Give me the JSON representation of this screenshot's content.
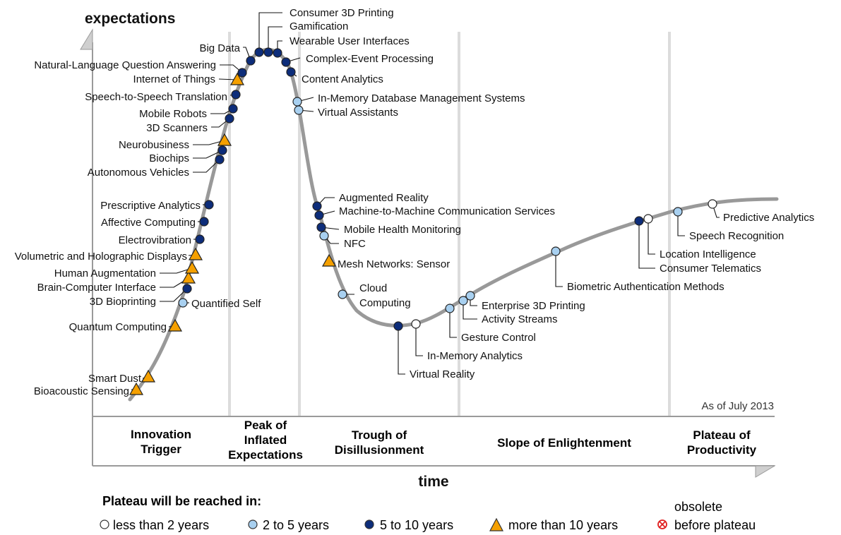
{
  "chart_data": {
    "type": "scatter",
    "y_axis_title": "expectations",
    "x_axis_title": "time",
    "as_of": "As of July 2013",
    "phases": [
      {
        "lines": [
          "Innovation",
          "Trigger"
        ]
      },
      {
        "lines": [
          "Peak of",
          "Inflated",
          "Expectations"
        ]
      },
      {
        "lines": [
          "Trough of",
          "Disillusionment"
        ]
      },
      {
        "lines": [
          "Slope of Enlightenment"
        ]
      },
      {
        "lines": [
          "Plateau of",
          "Productivity"
        ]
      }
    ],
    "legend": {
      "title": "Plateau will be reached in:",
      "items": [
        {
          "category": "lt2",
          "label": "less than 2 years"
        },
        {
          "category": "2to5",
          "label": "2 to 5 years"
        },
        {
          "category": "5to10",
          "label": "5 to 10 years"
        },
        {
          "category": "gt10",
          "label": "more than 10 years"
        },
        {
          "category": "obsolete",
          "label_line1": "obsolete",
          "label_line2": "before plateau"
        }
      ]
    },
    "colors": {
      "lt2": "#ffffff",
      "2to5": "#a8d0f0",
      "5to10": "#0d2d7a",
      "gt10": "#f5a000",
      "obsolete": "#e02020",
      "curve": "#999999"
    },
    "technologies": [
      {
        "name": "Bioacoustic Sensing",
        "category": "gt10"
      },
      {
        "name": "Smart Dust",
        "category": "gt10"
      },
      {
        "name": "Quantum Computing",
        "category": "gt10"
      },
      {
        "name": "Quantified Self",
        "category": "2to5"
      },
      {
        "name": "3D Bioprinting",
        "category": "5to10"
      },
      {
        "name": "Brain-Computer Interface",
        "category": "gt10"
      },
      {
        "name": "Human Augmentation",
        "category": "gt10"
      },
      {
        "name": "Volumetric and Holographic Displays",
        "category": "gt10"
      },
      {
        "name": "Electrovibration",
        "category": "5to10"
      },
      {
        "name": "Affective Computing",
        "category": "5to10"
      },
      {
        "name": "Prescriptive Analytics",
        "category": "5to10"
      },
      {
        "name": "Autonomous Vehicles",
        "category": "5to10"
      },
      {
        "name": "Biochips",
        "category": "5to10"
      },
      {
        "name": "Neurobusiness",
        "category": "gt10"
      },
      {
        "name": "3D Scanners",
        "category": "5to10"
      },
      {
        "name": "Mobile Robots",
        "category": "5to10"
      },
      {
        "name": "Speech-to-Speech Translation",
        "category": "5to10"
      },
      {
        "name": "Internet of Things",
        "category": "gt10"
      },
      {
        "name": "Natural-Language Question Answering",
        "category": "5to10"
      },
      {
        "name": "Big Data",
        "category": "5to10"
      },
      {
        "name": "Consumer 3D Printing",
        "category": "5to10"
      },
      {
        "name": "Gamification",
        "category": "5to10"
      },
      {
        "name": "Wearable User Interfaces",
        "category": "5to10"
      },
      {
        "name": "Complex-Event Processing",
        "category": "5to10"
      },
      {
        "name": "Content Analytics",
        "category": "5to10"
      },
      {
        "name": "In-Memory Database Management Systems",
        "category": "2to5"
      },
      {
        "name": "Virtual Assistants",
        "category": "2to5"
      },
      {
        "name": "Augmented Reality",
        "category": "5to10"
      },
      {
        "name": "Machine-to-Machine Communication Services",
        "category": "5to10"
      },
      {
        "name": "Mobile Health Monitoring",
        "category": "5to10"
      },
      {
        "name": "NFC",
        "category": "2to5"
      },
      {
        "name": "Mesh Networks: Sensor",
        "category": "gt10"
      },
      {
        "name": "Cloud Computing",
        "category": "2to5"
      },
      {
        "name": "Virtual Reality",
        "category": "5to10"
      },
      {
        "name": "In-Memory Analytics",
        "category": "lt2"
      },
      {
        "name": "Gesture Control",
        "category": "2to5"
      },
      {
        "name": "Activity Streams",
        "category": "2to5"
      },
      {
        "name": "Enterprise 3D Printing",
        "category": "2to5"
      },
      {
        "name": "Biometric Authentication Methods",
        "category": "2to5"
      },
      {
        "name": "Consumer Telematics",
        "category": "5to10"
      },
      {
        "name": "Location Intelligence",
        "category": "lt2"
      },
      {
        "name": "Speech Recognition",
        "category": "2to5"
      },
      {
        "name": "Predictive Analytics",
        "category": "lt2"
      }
    ]
  }
}
